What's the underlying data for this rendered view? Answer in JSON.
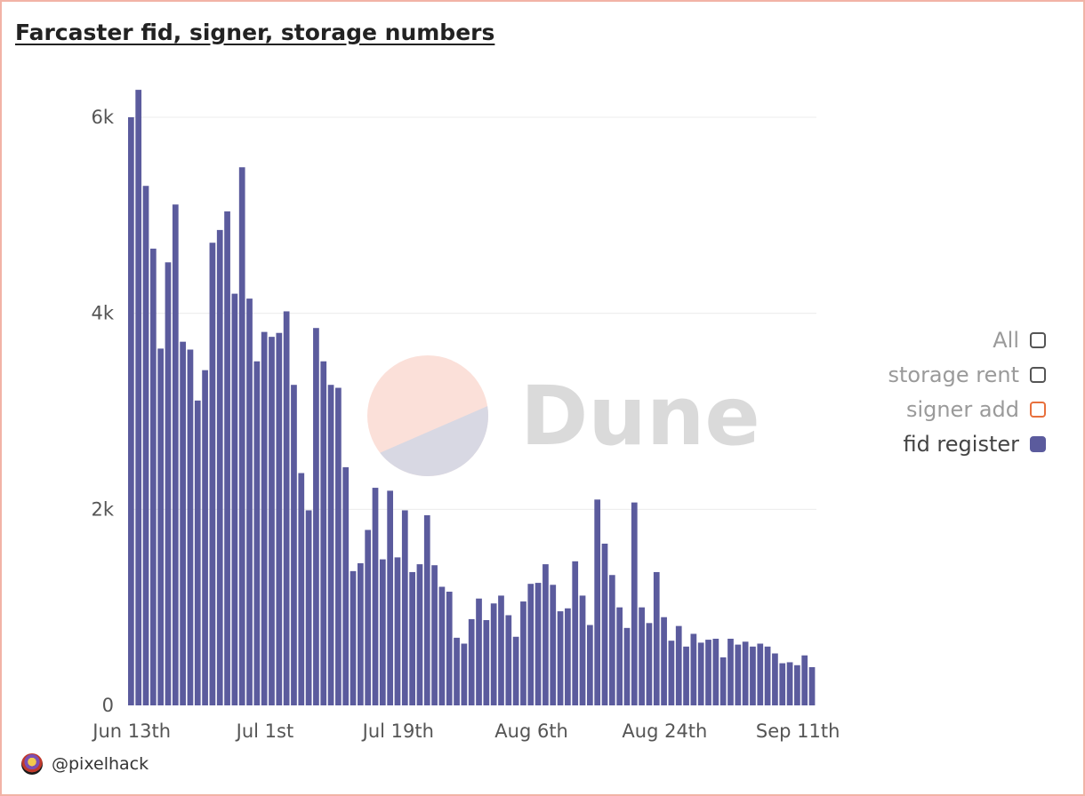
{
  "title": "Farcaster fid, signer, storage numbers",
  "author": "@pixelhack",
  "watermark": "Dune",
  "colors": {
    "bar": "#5b5b9d",
    "grid": "#ececec",
    "signer_add": "#e8703d",
    "frame": "#f2b3a6"
  },
  "legend": [
    {
      "label": "All",
      "active": false
    },
    {
      "label": "storage rent",
      "active": false
    },
    {
      "label": "signer add",
      "active": false,
      "color": "#e8703d"
    },
    {
      "label": "fid register",
      "active": true,
      "color": "#5b5b9d"
    }
  ],
  "chart_data": {
    "type": "bar",
    "ylim": [
      0,
      6000
    ],
    "yticks": [
      "0",
      "2k",
      "4k",
      "6k"
    ],
    "ytick_values": [
      0,
      2000,
      4000,
      6000
    ],
    "xticks": [
      "Jun 13th",
      "Jul 1st",
      "Jul 19th",
      "Aug 6th",
      "Aug 24th",
      "Sep 11th"
    ],
    "xtick_index": [
      0,
      18,
      36,
      54,
      72,
      90
    ],
    "grid": true,
    "legend_position": "right",
    "series": [
      {
        "name": "fid register",
        "values": [
          6000,
          6280,
          5300,
          4660,
          3640,
          4520,
          5110,
          3710,
          3630,
          3110,
          3420,
          4720,
          4850,
          5040,
          4200,
          5490,
          4150,
          3510,
          3810,
          3760,
          3800,
          4020,
          3270,
          2370,
          1990,
          3850,
          3510,
          3270,
          3240,
          2430,
          1370,
          1450,
          1790,
          2220,
          1490,
          2190,
          1510,
          1990,
          1360,
          1440,
          1940,
          1430,
          1210,
          1160,
          690,
          630,
          880,
          1090,
          870,
          1040,
          1120,
          920,
          700,
          1060,
          1240,
          1250,
          1440,
          1230,
          960,
          990,
          1470,
          1120,
          820,
          2100,
          1650,
          1330,
          1000,
          790,
          2070,
          1000,
          840,
          1360,
          900,
          660,
          810,
          600,
          730,
          640,
          670,
          680,
          490,
          680,
          620,
          650,
          600,
          630,
          600,
          530,
          430,
          440,
          410,
          510,
          390
        ]
      }
    ]
  }
}
